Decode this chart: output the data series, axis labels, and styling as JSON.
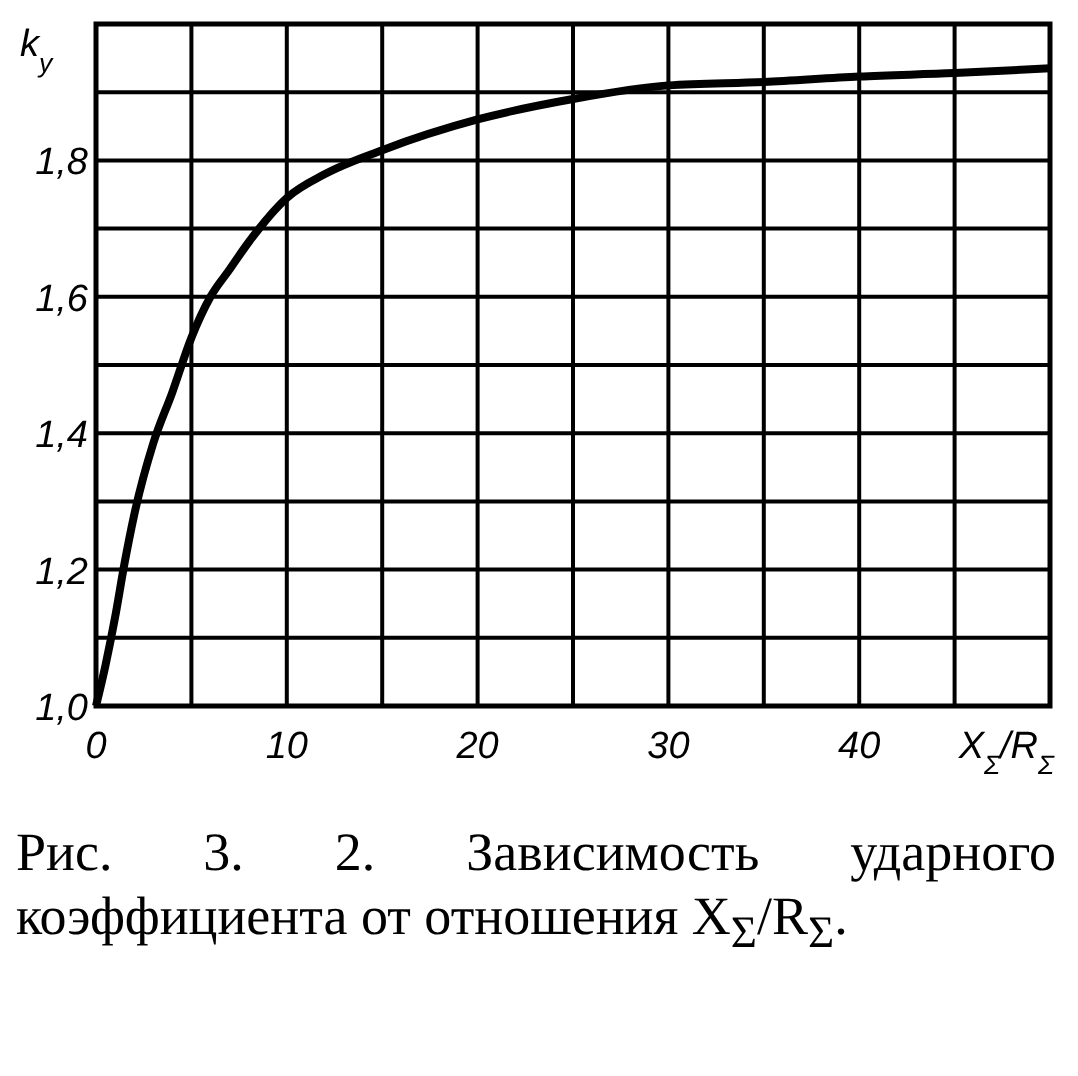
{
  "chart_data": {
    "type": "line",
    "xlabel": "X$_{Σ}$/R$_{Σ}$",
    "ylabel": "k$_{y}$",
    "annotations": [
      "Рис. 3. 2. Зависимость ударного коэффициента от отношения X$_{Σ}$/R$_{Σ}$."
    ],
    "series": [
      {
        "color": "#000000",
        "x": [
          0,
          0.5,
          1,
          1.5,
          2,
          3,
          4,
          5,
          6,
          7,
          8,
          10,
          12,
          15,
          20,
          25,
          30,
          35,
          40,
          45,
          50
        ],
        "values": [
          1.0,
          1.06,
          1.13,
          1.21,
          1.28,
          1.385,
          1.46,
          1.54,
          1.6,
          1.64,
          1.68,
          1.745,
          1.78,
          1.815,
          1.86,
          1.89,
          1.91,
          1.915,
          1.923,
          1.928,
          1.935
        ]
      }
    ],
    "xlim": [
      0,
      50
    ],
    "ylim": [
      1,
      2
    ],
    "xticks": [
      0,
      {
        "value": 5,
        "label": null
      },
      10,
      {
        "value": 15,
        "label": null
      },
      20,
      {
        "value": 25,
        "label": null
      },
      30,
      {
        "value": 35,
        "label": null
      },
      40,
      {
        "value": 45,
        "label": null
      },
      {
        "value": 50,
        "label": null
      }
    ],
    "yticks": [
      {
        "value": 1,
        "label": "1,0"
      },
      {
        "value": 1.1,
        "label": null
      },
      {
        "value": 1.2,
        "label": "1,2"
      },
      {
        "value": 1.3,
        "label": null
      },
      {
        "value": 1.4,
        "label": "1,4"
      },
      {
        "value": 1.5,
        "label": null
      },
      {
        "value": 1.6,
        "label": "1,6"
      },
      {
        "value": 1.7,
        "label": null
      },
      {
        "value": 1.8,
        "label": "1,8"
      },
      {
        "value": 1.9,
        "label": null
      },
      {
        "value": 2,
        "label": null
      }
    ],
    "grid": true,
    "line_style": "solid"
  }
}
